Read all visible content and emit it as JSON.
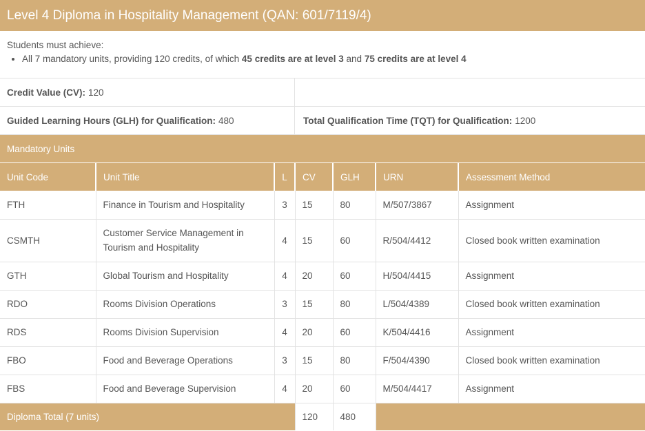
{
  "title": "Level 4 Diploma in Hospitality Management (QAN: 601/7119/4)",
  "requirements": {
    "intro": "Students must achieve:",
    "bullet_prefix": "All 7 mandatory units, providing 120 credits, of which ",
    "bold1": "45 credits are at level 3",
    "and": " and ",
    "bold2": "75 credits are at level 4"
  },
  "credit_value": {
    "label": "Credit Value (CV):",
    "value": "120"
  },
  "glh": {
    "label": "Guided Learning Hours (GLH) for Qualification:",
    "value": "480"
  },
  "tqt": {
    "label": "Total Qualification Time (TQT) for Qualification:",
    "value": "1200"
  },
  "section_title": "Mandatory Units",
  "columns": [
    "Unit Code",
    "Unit Title",
    "L",
    "CV",
    "GLH",
    "URN",
    "Assessment Method"
  ],
  "units": [
    [
      "FTH",
      "Finance in Tourism and Hospitality",
      "3",
      "15",
      "80",
      "M/507/3867",
      "Assignment"
    ],
    [
      "CSMTH",
      "Customer Service Management in Tourism and Hospitality",
      "4",
      "15",
      "60",
      "R/504/4412",
      "Closed book written examination"
    ],
    [
      "GTH",
      "Global Tourism and Hospitality",
      "4",
      "20",
      "60",
      "H/504/4415",
      "Assignment"
    ],
    [
      "RDO",
      "Rooms Division Operations",
      "3",
      "15",
      "80",
      "L/504/4389",
      "Closed book written examination"
    ],
    [
      "RDS",
      "Rooms Division Supervision",
      "4",
      "20",
      "60",
      "K/504/4416",
      "Assignment"
    ],
    [
      "FBO",
      "Food and Beverage Operations",
      "3",
      "15",
      "80",
      "F/504/4390",
      "Closed book written examination"
    ],
    [
      "FBS",
      "Food and Beverage Supervision",
      "4",
      "20",
      "60",
      "M/504/4417",
      "Assignment"
    ]
  ],
  "total": {
    "label": "Diploma Total (7 units)",
    "cv": "120",
    "glh": "480"
  },
  "colors": {
    "accent": "#d3ae78",
    "border": "#e2e2e2",
    "text": "#555555"
  }
}
